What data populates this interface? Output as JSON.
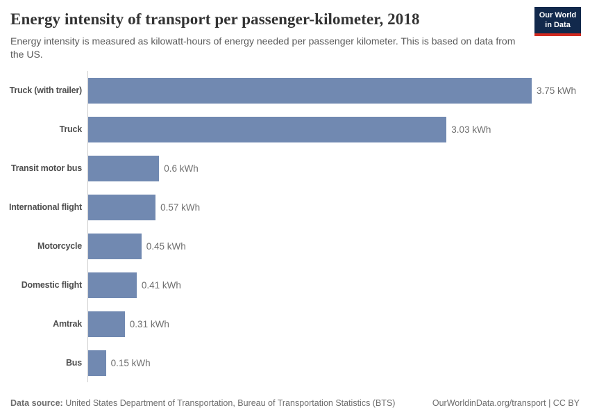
{
  "header": {
    "title": "Energy intensity of transport per passenger-kilometer, 2018",
    "subtitle": "Energy intensity is measured as kilowatt-hours of energy needed per passenger kilometer. This is based on data from the US.",
    "logo": {
      "line1": "Our World",
      "line2": "in Data"
    }
  },
  "chart_data": {
    "type": "bar",
    "orientation": "horizontal",
    "title": "Energy intensity of transport per passenger-kilometer, 2018",
    "unit": "kWh",
    "xlabel": "",
    "ylabel": "",
    "xlim": [
      0,
      3.75
    ],
    "grid": false,
    "legend": "none",
    "categories": [
      "Truck (with trailer)",
      "Truck",
      "Transit motor bus",
      "International flight",
      "Motorcycle",
      "Domestic flight",
      "Amtrak",
      "Bus"
    ],
    "values": [
      3.75,
      3.03,
      0.6,
      0.57,
      0.45,
      0.41,
      0.31,
      0.15
    ],
    "value_labels": [
      "3.75 kWh",
      "3.03 kWh",
      "0.6 kWh",
      "0.57 kWh",
      "0.45 kWh",
      "0.41 kWh",
      "0.31 kWh",
      "0.15 kWh"
    ]
  },
  "footer": {
    "source_label": "Data source:",
    "source_text": "United States Department of Transportation, Bureau of Transportation Statistics (BTS)",
    "attribution": "OurWorldinData.org/transport | CC BY"
  },
  "colors": {
    "bar": "#7189b1",
    "axis_line": "#cccccc",
    "logo_background": "#12294c",
    "logo_stripe": "#d22a20",
    "title_text": "#333333",
    "subtitle_text": "#5b5b5b",
    "category_label": "#4e4e4e",
    "value_label": "#6e6e6e",
    "footer_text": "#6d6d6d"
  }
}
